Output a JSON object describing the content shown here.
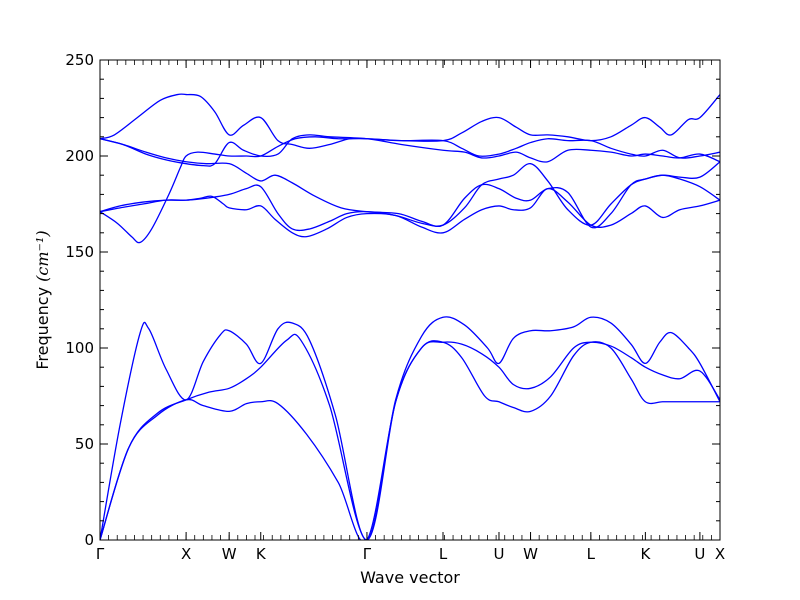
{
  "chart_data": {
    "type": "line",
    "xlabel": "Wave vector",
    "ylabel": "Frequency",
    "ylabel_unit": "(cm⁻¹)",
    "ylim": [
      0,
      250
    ],
    "yticks": [
      0,
      50,
      100,
      150,
      200,
      250
    ],
    "xlim": [
      0,
      21.6
    ],
    "x_ticks": [
      {
        "label": "Γ",
        "x": 0
      },
      {
        "label": "X",
        "x": 3.0
      },
      {
        "label": "W",
        "x": 4.5
      },
      {
        "label": "K",
        "x": 5.6
      },
      {
        "label": "Γ",
        "x": 9.3
      },
      {
        "label": "L",
        "x": 11.95
      },
      {
        "label": "U",
        "x": 13.9
      },
      {
        "label": "W",
        "x": 15.0
      },
      {
        "label": "L",
        "x": 17.1
      },
      {
        "label": "K",
        "x": 19.0
      },
      {
        "label": "U",
        "x": 20.9
      },
      {
        "label": "X",
        "x": 21.6
      }
    ],
    "grid": false,
    "legend": "none",
    "line_color": "#0000ff",
    "series": [
      {
        "points": [
          [
            0,
            0
          ],
          [
            1.0,
            48
          ],
          [
            2.0,
            66
          ],
          [
            3.0,
            73
          ],
          [
            3.8,
            77
          ],
          [
            4.5,
            79
          ],
          [
            5.1,
            84
          ],
          [
            5.6,
            90
          ],
          [
            6.5,
            104
          ],
          [
            7.0,
            104
          ],
          [
            8.0,
            70
          ],
          [
            9.3,
            0
          ],
          [
            10.3,
            72
          ],
          [
            11.2,
            100
          ],
          [
            11.95,
            103
          ],
          [
            12.6,
            102
          ],
          [
            13.3,
            97
          ],
          [
            13.9,
            90
          ],
          [
            14.4,
            81
          ],
          [
            15.0,
            79
          ],
          [
            15.7,
            85
          ],
          [
            16.5,
            100
          ],
          [
            17.1,
            103
          ],
          [
            17.8,
            101
          ],
          [
            18.5,
            95
          ],
          [
            19.0,
            90
          ],
          [
            19.6,
            86
          ],
          [
            20.2,
            84
          ],
          [
            20.9,
            88
          ],
          [
            21.6,
            73
          ]
        ]
      },
      {
        "points": [
          [
            0,
            0
          ],
          [
            1.0,
            48
          ],
          [
            2.0,
            65
          ],
          [
            3.0,
            73
          ],
          [
            3.6,
            70
          ],
          [
            4.5,
            67
          ],
          [
            5.1,
            71
          ],
          [
            5.6,
            72
          ],
          [
            6.2,
            71
          ],
          [
            7.2,
            55
          ],
          [
            8.3,
            30
          ],
          [
            9.3,
            0
          ],
          [
            10.3,
            72
          ],
          [
            11.2,
            100
          ],
          [
            11.95,
            103
          ],
          [
            12.6,
            95
          ],
          [
            13.4,
            75
          ],
          [
            13.9,
            72
          ],
          [
            14.4,
            69
          ],
          [
            15.0,
            67
          ],
          [
            15.7,
            75
          ],
          [
            16.5,
            96
          ],
          [
            17.1,
            103
          ],
          [
            17.8,
            100
          ],
          [
            18.5,
            84
          ],
          [
            19.0,
            72
          ],
          [
            19.6,
            72
          ],
          [
            20.2,
            72
          ],
          [
            20.9,
            72
          ],
          [
            21.6,
            72
          ]
        ]
      },
      {
        "points": [
          [
            0,
            0
          ],
          [
            0.7,
            60
          ],
          [
            1.4,
            108
          ],
          [
            1.7,
            110
          ],
          [
            2.3,
            89
          ],
          [
            3.0,
            73
          ],
          [
            3.6,
            93
          ],
          [
            4.2,
            107
          ],
          [
            4.5,
            109
          ],
          [
            5.1,
            102
          ],
          [
            5.6,
            92
          ],
          [
            6.2,
            110
          ],
          [
            6.7,
            113
          ],
          [
            7.3,
            104
          ],
          [
            8.2,
            65
          ],
          [
            9.3,
            0
          ],
          [
            10.3,
            73
          ],
          [
            11.2,
            106
          ],
          [
            11.95,
            116
          ],
          [
            12.7,
            112
          ],
          [
            13.5,
            100
          ],
          [
            13.9,
            92
          ],
          [
            14.4,
            105
          ],
          [
            15.0,
            109
          ],
          [
            15.7,
            109
          ],
          [
            16.5,
            111
          ],
          [
            17.1,
            116
          ],
          [
            17.8,
            113
          ],
          [
            18.5,
            102
          ],
          [
            19.0,
            92
          ],
          [
            19.5,
            103
          ],
          [
            19.9,
            108
          ],
          [
            20.5,
            100
          ],
          [
            20.9,
            92
          ],
          [
            21.6,
            72
          ]
        ]
      },
      {
        "points": [
          [
            0,
            171
          ],
          [
            0.6,
            165
          ],
          [
            1.1,
            158
          ],
          [
            1.4,
            155
          ],
          [
            1.8,
            162
          ],
          [
            2.4,
            180
          ],
          [
            2.8,
            194
          ],
          [
            3.0,
            200
          ],
          [
            3.4,
            202
          ],
          [
            4.0,
            201
          ],
          [
            4.5,
            200
          ],
          [
            5.1,
            200
          ],
          [
            5.6,
            200
          ],
          [
            6.2,
            205
          ],
          [
            6.8,
            209
          ],
          [
            7.5,
            210
          ],
          [
            8.3,
            209
          ],
          [
            9.3,
            209
          ],
          [
            10.5,
            208
          ],
          [
            11.95,
            208
          ],
          [
            12.6,
            204
          ],
          [
            13.2,
            200
          ],
          [
            13.9,
            201
          ],
          [
            14.5,
            204
          ],
          [
            15.0,
            207
          ],
          [
            15.6,
            209
          ],
          [
            16.3,
            208
          ],
          [
            17.1,
            208
          ],
          [
            17.8,
            204
          ],
          [
            18.5,
            201
          ],
          [
            19.0,
            200
          ],
          [
            19.6,
            203
          ],
          [
            20.2,
            199
          ],
          [
            20.9,
            200
          ],
          [
            21.6,
            202
          ]
        ]
      },
      {
        "points": [
          [
            0,
            171
          ],
          [
            0.7,
            173
          ],
          [
            1.5,
            175
          ],
          [
            2.3,
            177
          ],
          [
            3.0,
            177
          ],
          [
            3.7,
            178
          ],
          [
            4.5,
            180
          ],
          [
            5.1,
            183
          ],
          [
            5.6,
            184
          ],
          [
            6.2,
            170
          ],
          [
            6.7,
            162
          ],
          [
            7.3,
            162
          ],
          [
            8.0,
            166
          ],
          [
            8.6,
            170
          ],
          [
            9.3,
            171
          ],
          [
            10.3,
            169
          ],
          [
            11.2,
            165
          ],
          [
            11.95,
            164
          ],
          [
            12.7,
            173
          ],
          [
            13.3,
            185
          ],
          [
            13.9,
            188
          ],
          [
            14.4,
            190
          ],
          [
            15.0,
            196
          ],
          [
            15.6,
            187
          ],
          [
            16.3,
            172
          ],
          [
            17.1,
            164
          ],
          [
            17.8,
            175
          ],
          [
            18.5,
            185
          ],
          [
            19.0,
            188
          ],
          [
            19.6,
            190
          ],
          [
            20.2,
            188
          ],
          [
            20.9,
            184
          ],
          [
            21.6,
            177
          ]
        ]
      },
      {
        "points": [
          [
            0,
            171
          ],
          [
            0.7,
            174
          ],
          [
            1.5,
            176
          ],
          [
            2.3,
            177
          ],
          [
            3.0,
            177
          ],
          [
            3.5,
            178
          ],
          [
            3.9,
            179
          ],
          [
            4.3,
            175
          ],
          [
            4.5,
            173
          ],
          [
            5.1,
            172
          ],
          [
            5.6,
            174
          ],
          [
            6.1,
            167
          ],
          [
            6.7,
            160
          ],
          [
            7.2,
            158
          ],
          [
            7.9,
            162
          ],
          [
            8.6,
            168
          ],
          [
            9.3,
            170
          ],
          [
            10.3,
            169
          ],
          [
            11.2,
            163
          ],
          [
            11.95,
            160
          ],
          [
            12.7,
            167
          ],
          [
            13.3,
            172
          ],
          [
            13.9,
            174
          ],
          [
            14.4,
            172
          ],
          [
            15.0,
            173
          ],
          [
            15.6,
            183
          ],
          [
            16.3,
            176
          ],
          [
            17.1,
            164
          ],
          [
            17.8,
            164
          ],
          [
            18.5,
            170
          ],
          [
            19.0,
            174
          ],
          [
            19.6,
            168
          ],
          [
            20.2,
            172
          ],
          [
            20.9,
            174
          ],
          [
            21.6,
            177
          ]
        ]
      },
      {
        "points": [
          [
            0,
            209
          ],
          [
            0.8,
            206
          ],
          [
            1.6,
            202
          ],
          [
            2.3,
            199
          ],
          [
            3.0,
            197
          ],
          [
            3.7,
            196
          ],
          [
            4.5,
            196
          ],
          [
            5.1,
            191
          ],
          [
            5.6,
            187
          ],
          [
            6.1,
            190
          ],
          [
            6.7,
            186
          ],
          [
            7.5,
            179
          ],
          [
            8.4,
            173
          ],
          [
            9.3,
            171
          ],
          [
            10.4,
            170
          ],
          [
            11.2,
            166
          ],
          [
            11.95,
            164
          ],
          [
            12.7,
            178
          ],
          [
            13.3,
            185
          ],
          [
            13.9,
            183
          ],
          [
            14.5,
            178
          ],
          [
            15.0,
            177
          ],
          [
            15.6,
            183
          ],
          [
            16.3,
            181
          ],
          [
            17.1,
            163
          ],
          [
            17.8,
            170
          ],
          [
            18.5,
            185
          ],
          [
            19.0,
            188
          ],
          [
            19.6,
            190
          ],
          [
            20.2,
            189
          ],
          [
            20.9,
            189
          ],
          [
            21.6,
            197
          ]
        ]
      },
      {
        "points": [
          [
            0,
            209
          ],
          [
            0.8,
            206
          ],
          [
            1.6,
            201
          ],
          [
            2.3,
            198
          ],
          [
            3.0,
            196
          ],
          [
            3.6,
            195
          ],
          [
            4.0,
            196
          ],
          [
            4.5,
            207
          ],
          [
            5.0,
            203
          ],
          [
            5.6,
            200
          ],
          [
            6.2,
            201
          ],
          [
            6.7,
            209
          ],
          [
            7.3,
            211
          ],
          [
            8.0,
            210
          ],
          [
            9.3,
            209
          ],
          [
            10.5,
            206
          ],
          [
            11.95,
            203
          ],
          [
            12.7,
            202
          ],
          [
            13.3,
            199
          ],
          [
            13.9,
            200
          ],
          [
            14.5,
            202
          ],
          [
            15.0,
            199
          ],
          [
            15.6,
            197
          ],
          [
            16.3,
            203
          ],
          [
            17.1,
            203
          ],
          [
            17.8,
            202
          ],
          [
            18.5,
            200
          ],
          [
            19.0,
            201
          ],
          [
            19.6,
            200
          ],
          [
            20.2,
            199
          ],
          [
            20.9,
            201
          ],
          [
            21.6,
            197
          ]
        ]
      },
      {
        "points": [
          [
            0,
            209
          ],
          [
            0.5,
            211
          ],
          [
            1.3,
            220
          ],
          [
            2.1,
            229
          ],
          [
            2.7,
            232
          ],
          [
            3.0,
            232
          ],
          [
            3.5,
            231
          ],
          [
            4.0,
            223
          ],
          [
            4.5,
            211
          ],
          [
            5.0,
            216
          ],
          [
            5.6,
            220
          ],
          [
            6.2,
            208
          ],
          [
            6.7,
            206
          ],
          [
            7.3,
            204
          ],
          [
            8.0,
            206
          ],
          [
            8.7,
            209
          ],
          [
            9.3,
            209
          ],
          [
            10.5,
            208
          ],
          [
            11.95,
            208
          ],
          [
            12.6,
            212
          ],
          [
            13.3,
            218
          ],
          [
            13.9,
            220
          ],
          [
            14.5,
            215
          ],
          [
            15.0,
            211
          ],
          [
            15.6,
            211
          ],
          [
            16.3,
            210
          ],
          [
            17.1,
            208
          ],
          [
            17.8,
            210
          ],
          [
            18.5,
            216
          ],
          [
            19.0,
            220
          ],
          [
            19.5,
            215
          ],
          [
            19.9,
            211
          ],
          [
            20.5,
            219
          ],
          [
            20.9,
            220
          ],
          [
            21.6,
            232
          ]
        ]
      }
    ]
  }
}
